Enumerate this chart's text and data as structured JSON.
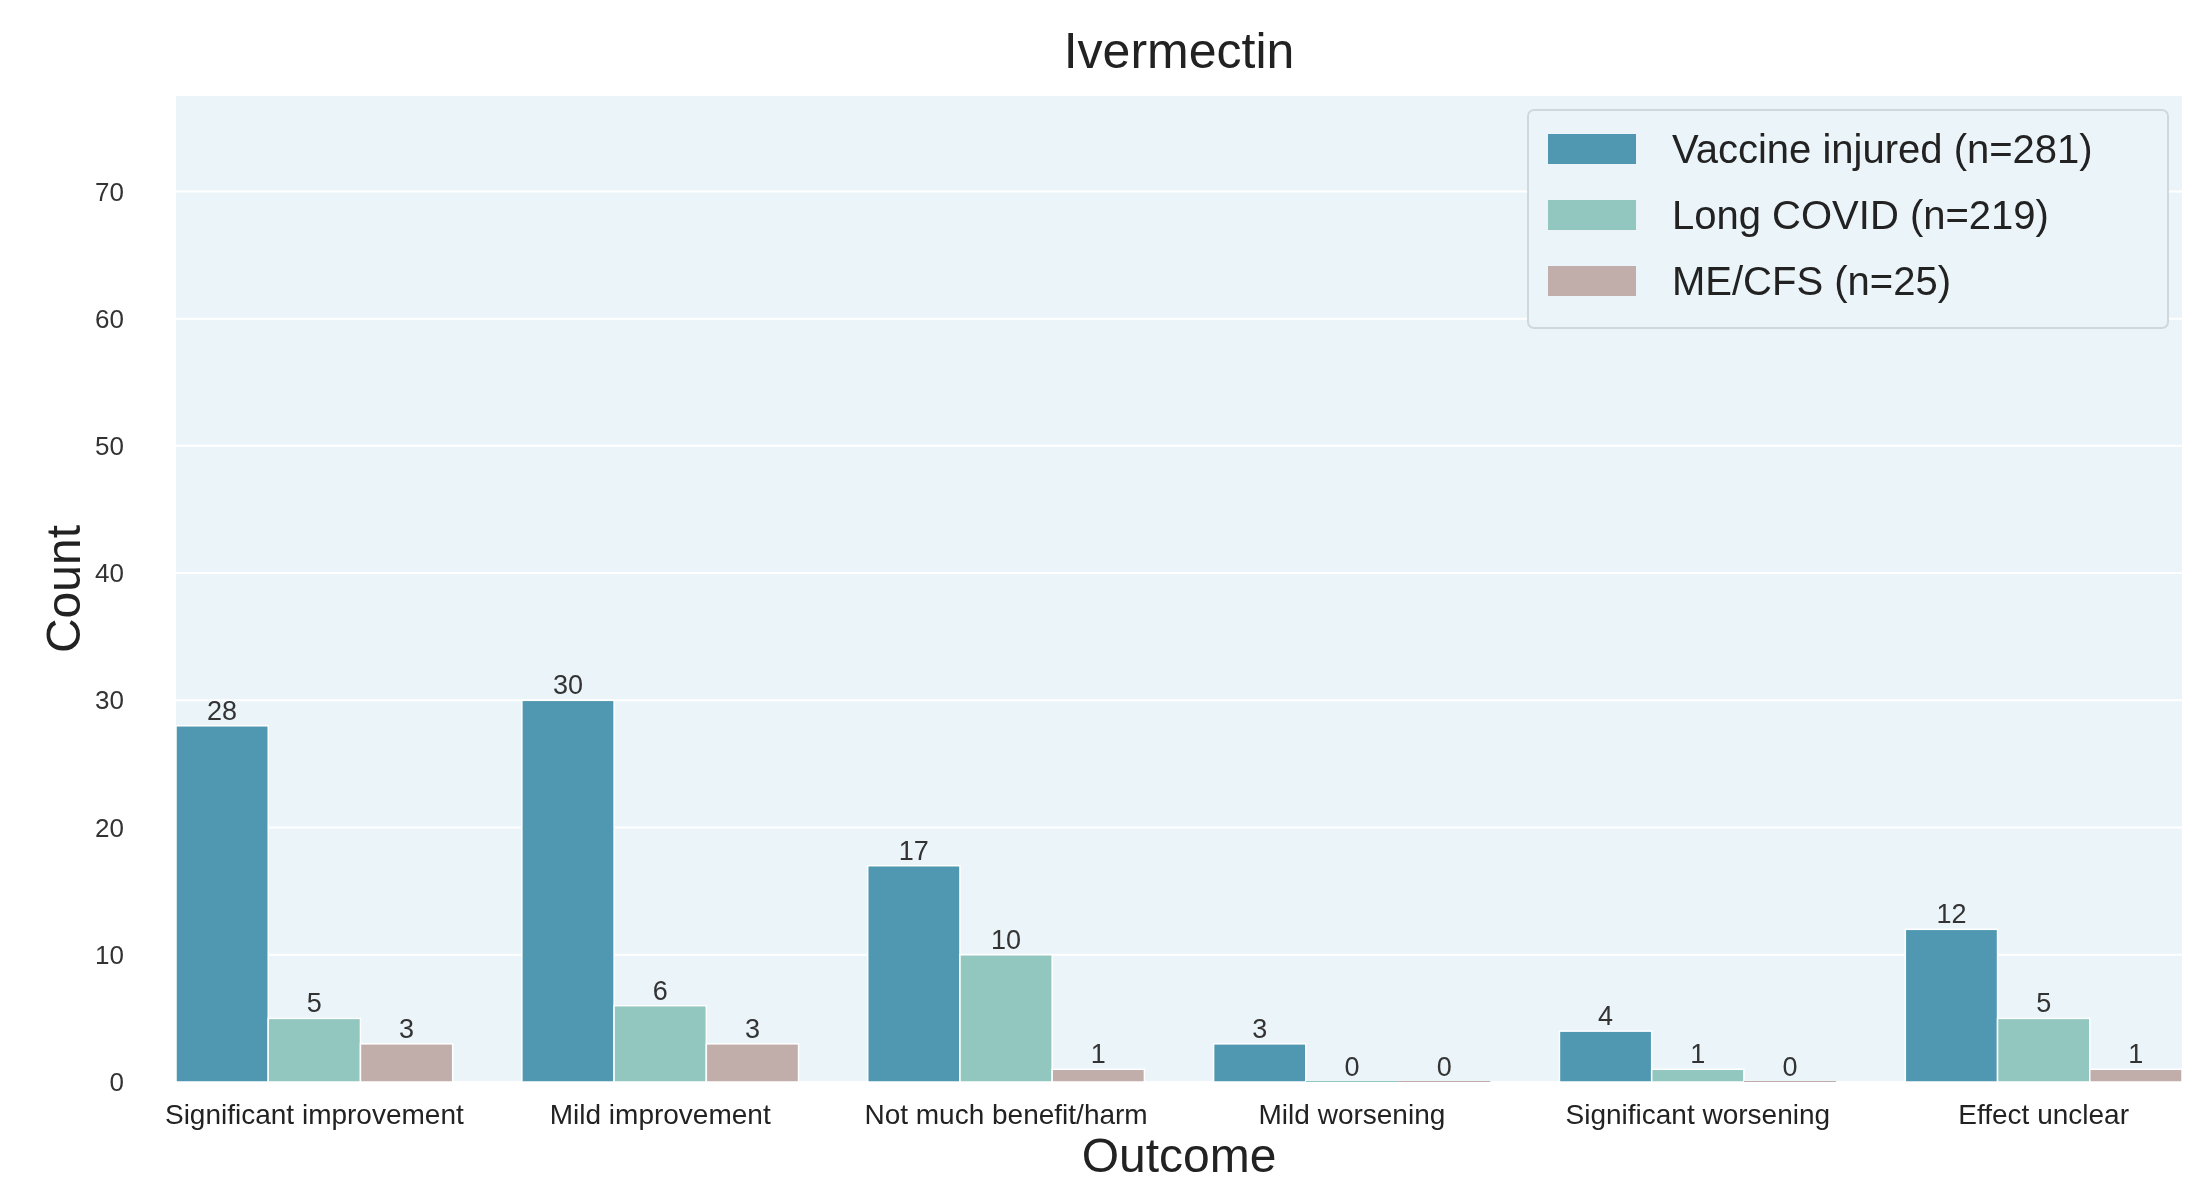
{
  "chart_data": {
    "type": "bar",
    "title": "Ivermectin",
    "xlabel": "Outcome",
    "ylabel": "Count",
    "categories": [
      "Significant improvement",
      "Mild improvement",
      "Not much benefit/harm",
      "Mild worsening",
      "Significant worsening",
      "Effect unclear"
    ],
    "series": [
      {
        "name": "Vaccine injured (n=281)",
        "color": "#5097b1",
        "values": [
          28,
          30,
          17,
          3,
          4,
          12
        ]
      },
      {
        "name": "Long COVID (n=219)",
        "color": "#92c7bf",
        "values": [
          5,
          6,
          10,
          0,
          1,
          5
        ]
      },
      {
        "name": "ME/CFS (n=25)",
        "color": "#c1aeab",
        "values": [
          3,
          3,
          1,
          0,
          0,
          1
        ]
      }
    ],
    "ylim": [
      0,
      77.5
    ],
    "yticks": [
      0,
      10,
      20,
      30,
      40,
      50,
      60,
      70
    ],
    "grid": "y",
    "legend": "top right",
    "data_labels": true
  }
}
